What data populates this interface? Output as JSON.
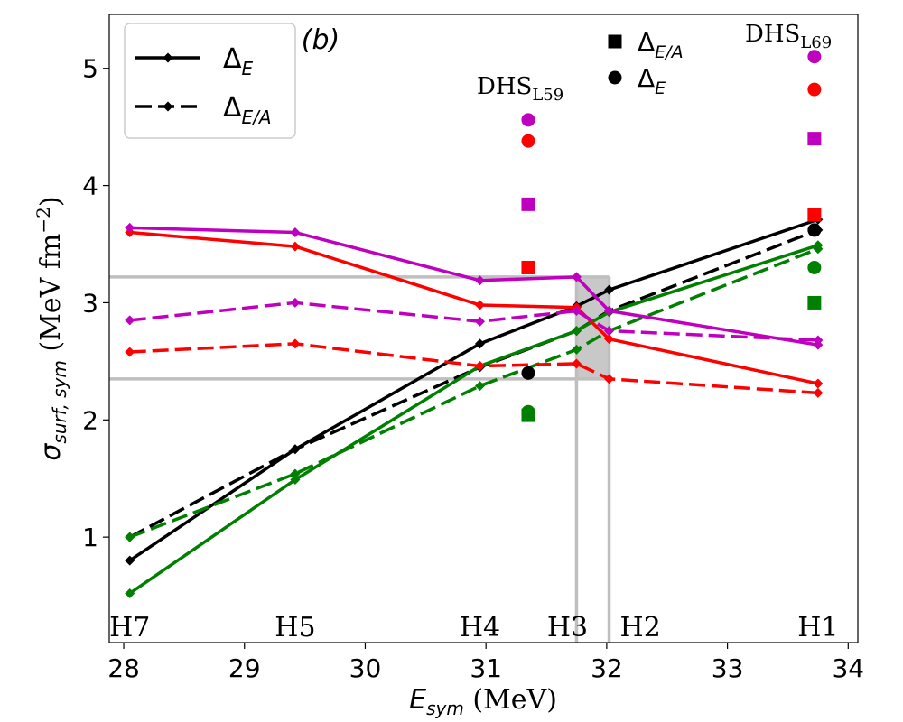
{
  "chart_data": {
    "type": "line",
    "panel_label": "(b)",
    "xlabel_main": "E",
    "xlabel_sub": "sym",
    "xlabel_unit": " (MeV)",
    "ylabel_main": "σ",
    "ylabel_sub": "surf, sym",
    "ylabel_unit": " (MeV fm",
    "ylabel_exp": "−2",
    "ylabel_close": ")",
    "xlim": [
      27.88,
      34.08
    ],
    "ylim": [
      0.1,
      5.46
    ],
    "xticks": [
      28,
      29,
      30,
      31,
      32,
      33,
      34
    ],
    "yticks": [
      1,
      2,
      3,
      4,
      5
    ],
    "x": [
      28.05,
      29.42,
      30.95,
      31.75,
      32.02,
      33.75
    ],
    "point_labels": [
      "H7",
      "H5",
      "H4",
      "H3",
      "H2",
      "H1"
    ],
    "series": [
      {
        "name": "black Δ_E",
        "color": "#000000",
        "dash": "solid",
        "values": [
          0.8,
          1.75,
          2.65,
          2.97,
          3.11,
          3.71
        ]
      },
      {
        "name": "black Δ_E/A",
        "color": "#000000",
        "dash": "dashed",
        "values": [
          1.0,
          1.75,
          2.45,
          2.76,
          2.93,
          3.62
        ]
      },
      {
        "name": "green Δ_E",
        "color": "#008000",
        "dash": "solid",
        "values": [
          0.52,
          1.49,
          2.46,
          2.76,
          2.92,
          3.49
        ]
      },
      {
        "name": "green Δ_E/A",
        "color": "#008000",
        "dash": "dashed",
        "values": [
          1.0,
          1.54,
          2.29,
          2.6,
          2.76,
          3.46
        ]
      },
      {
        "name": "red Δ_E",
        "color": "#ff0000",
        "dash": "solid",
        "values": [
          3.6,
          3.48,
          2.98,
          2.96,
          2.69,
          2.31
        ]
      },
      {
        "name": "red Δ_E/A",
        "color": "#ff0000",
        "dash": "dashed",
        "values": [
          2.58,
          2.65,
          2.46,
          2.48,
          2.35,
          2.23
        ]
      },
      {
        "name": "magenta Δ_E",
        "color": "#bf00bf",
        "dash": "solid",
        "values": [
          3.64,
          3.6,
          3.19,
          3.22,
          2.93,
          2.64
        ]
      },
      {
        "name": "magenta Δ_E/A",
        "color": "#bf00bf",
        "dash": "dashed",
        "values": [
          2.85,
          3.0,
          2.84,
          2.93,
          2.76,
          2.68
        ]
      }
    ],
    "dhs_points": [
      {
        "label": "DHS",
        "label_sub": "L59",
        "x": 31.35,
        "markers": [
          {
            "shape": "circle",
            "color": "#bf00bf",
            "y": 4.56
          },
          {
            "shape": "circle",
            "color": "#ff0000",
            "y": 4.38
          },
          {
            "shape": "square",
            "color": "#bf00bf",
            "y": 3.84
          },
          {
            "shape": "square",
            "color": "#ff0000",
            "y": 3.3
          },
          {
            "shape": "circle",
            "color": "#000000",
            "y": 2.4
          },
          {
            "shape": "circle",
            "color": "#008000",
            "y": 2.07
          },
          {
            "shape": "square",
            "color": "#008000",
            "y": 2.04
          }
        ]
      },
      {
        "label": "DHS",
        "label_sub": "L69",
        "x": 33.72,
        "markers": [
          {
            "shape": "circle",
            "color": "#bf00bf",
            "y": 5.1
          },
          {
            "shape": "circle",
            "color": "#ff0000",
            "y": 4.82
          },
          {
            "shape": "square",
            "color": "#bf00bf",
            "y": 4.4
          },
          {
            "shape": "square",
            "color": "#ff0000",
            "y": 3.75
          },
          {
            "shape": "circle",
            "color": "#000000",
            "y": 3.62
          },
          {
            "shape": "circle",
            "color": "#008000",
            "y": 3.3
          },
          {
            "shape": "square",
            "color": "#008000",
            "y": 3.0
          }
        ]
      }
    ],
    "reference_lines": {
      "hlines": [
        3.22,
        2.35
      ],
      "vlines": [
        31.75,
        32.02
      ],
      "color": "#bfbfbf"
    },
    "shaded_region_x": [
      31.75,
      32.02
    ],
    "legend_lines": [
      {
        "text": "Δ",
        "sub": "E",
        "dash": "solid"
      },
      {
        "text": "Δ",
        "sub": "E/A",
        "dash": "dashed"
      }
    ],
    "legend_markers": [
      {
        "text": "Δ",
        "sub": "E/A",
        "shape": "square"
      },
      {
        "text": "Δ",
        "sub": "E",
        "shape": "circle"
      }
    ]
  }
}
